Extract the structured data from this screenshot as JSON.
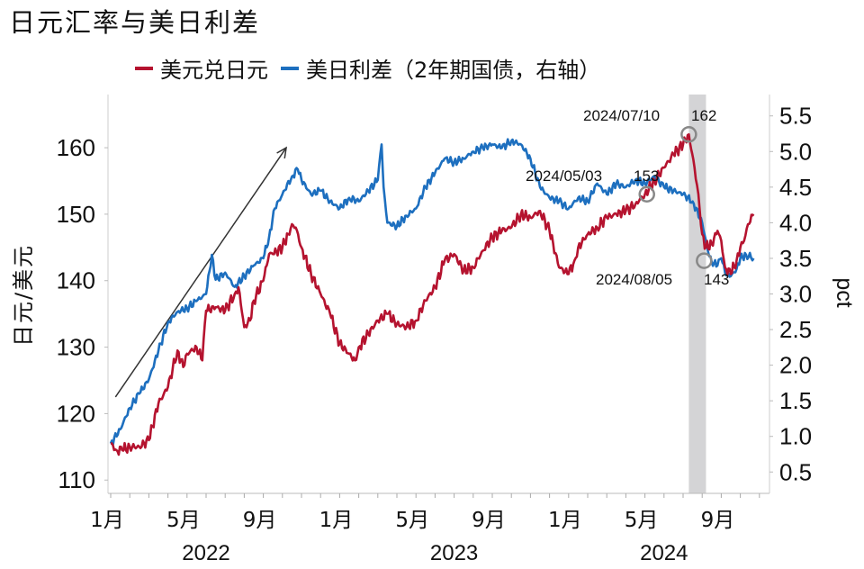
{
  "chart_data": {
    "type": "line",
    "title": "日元汇率与美日利差",
    "ylabel": "日元/美元",
    "y2label": "pct",
    "legend_position": "top",
    "grid": false,
    "ylim": [
      108,
      168
    ],
    "y2lim": [
      0.2,
      5.8
    ],
    "yticks": [
      110,
      120,
      130,
      140,
      150,
      160
    ],
    "y2ticks": [
      "0.5",
      "1.0",
      "1.5",
      "2.0",
      "2.5",
      "3.0",
      "3.5",
      "4.0",
      "4.5",
      "5.0",
      "5.5"
    ],
    "xticks": [
      {
        "m": 0,
        "label": "1月"
      },
      {
        "m": 4,
        "label": "5月"
      },
      {
        "m": 8,
        "label": "9月"
      },
      {
        "m": 12,
        "label": "1月"
      },
      {
        "m": 16,
        "label": "5月"
      },
      {
        "m": 20,
        "label": "9月"
      },
      {
        "m": 24,
        "label": "1月"
      },
      {
        "m": 28,
        "label": "5月"
      },
      {
        "m": 32,
        "label": "9月"
      }
    ],
    "year_labels": [
      {
        "m": 5,
        "label": "2022"
      },
      {
        "m": 18,
        "label": "2023"
      },
      {
        "m": 29,
        "label": "2024"
      }
    ],
    "shaded_period": {
      "from": 30.3,
      "to": 31.2
    },
    "trend_arrow": {
      "from": [
        0.25,
        122.5
      ],
      "to": [
        9.2,
        160
      ]
    },
    "series": [
      {
        "name": "美元兑日元",
        "color": "#b5132f",
        "axis": "left",
        "points": [
          [
            0,
            115.5
          ],
          [
            0.3,
            114.5
          ],
          [
            0.6,
            114.5
          ],
          [
            1,
            115
          ],
          [
            1.5,
            115
          ],
          [
            2,
            116
          ],
          [
            2.5,
            121.5
          ],
          [
            3,
            124
          ],
          [
            3.5,
            129.5
          ],
          [
            3.8,
            127
          ],
          [
            4,
            129
          ],
          [
            4.5,
            130
          ],
          [
            4.8,
            128
          ],
          [
            5,
            135.5
          ],
          [
            5.5,
            136
          ],
          [
            6,
            135.5
          ],
          [
            6.5,
            138
          ],
          [
            6.7,
            139
          ],
          [
            7,
            133
          ],
          [
            7.3,
            134
          ],
          [
            7.5,
            137
          ],
          [
            8,
            140
          ],
          [
            8.3,
            144
          ],
          [
            8.5,
            144
          ],
          [
            9,
            145
          ],
          [
            9.3,
            147
          ],
          [
            9.5,
            148.5
          ],
          [
            9.7,
            148
          ],
          [
            10,
            145
          ],
          [
            10.5,
            141
          ],
          [
            11,
            138
          ],
          [
            11.5,
            135
          ],
          [
            12,
            130.5
          ],
          [
            12.5,
            129
          ],
          [
            12.8,
            128
          ],
          [
            13,
            130
          ],
          [
            13.5,
            132
          ],
          [
            14,
            134
          ],
          [
            14.5,
            135
          ],
          [
            15,
            133.5
          ],
          [
            15.5,
            133
          ],
          [
            16,
            134
          ],
          [
            16.5,
            137
          ],
          [
            17,
            139
          ],
          [
            17.5,
            143
          ],
          [
            18,
            144
          ],
          [
            18.5,
            141.5
          ],
          [
            19,
            142
          ],
          [
            19.5,
            144.5
          ],
          [
            20,
            146.5
          ],
          [
            20.5,
            147.5
          ],
          [
            21,
            148
          ],
          [
            21.5,
            150
          ],
          [
            22,
            149.5
          ],
          [
            22.5,
            150.5
          ],
          [
            23,
            147.5
          ],
          [
            23.5,
            142
          ],
          [
            24,
            141
          ],
          [
            24.3,
            143
          ],
          [
            24.5,
            145
          ],
          [
            25,
            147
          ],
          [
            25.5,
            148
          ],
          [
            26,
            149.5
          ],
          [
            26.5,
            150
          ],
          [
            27,
            150.5
          ],
          [
            27.5,
            151.5
          ],
          [
            28,
            153
          ],
          [
            28.5,
            155
          ],
          [
            29,
            157
          ],
          [
            29.5,
            159
          ],
          [
            30,
            160.5
          ],
          [
            30.3,
            162
          ],
          [
            30.6,
            157
          ],
          [
            30.8,
            153
          ],
          [
            31,
            147
          ],
          [
            31.2,
            145
          ],
          [
            31.5,
            145.5
          ],
          [
            31.8,
            147.5
          ],
          [
            32,
            146
          ],
          [
            32.2,
            142
          ],
          [
            32.5,
            141
          ],
          [
            32.8,
            143
          ],
          [
            33,
            145
          ],
          [
            33.2,
            146
          ],
          [
            33.4,
            148.5
          ],
          [
            33.7,
            150
          ]
        ]
      },
      {
        "name": "美日利差（2年期国债，右轴）",
        "color": "#1d6fbf",
        "axis": "right",
        "points": [
          [
            0,
            0.9
          ],
          [
            0.5,
            1.1
          ],
          [
            1,
            1.4
          ],
          [
            1.5,
            1.6
          ],
          [
            2,
            1.8
          ],
          [
            2.5,
            2.2
          ],
          [
            3,
            2.6
          ],
          [
            3.5,
            2.75
          ],
          [
            4,
            2.8
          ],
          [
            4.5,
            2.9
          ],
          [
            5,
            3.0
          ],
          [
            5.3,
            3.55
          ],
          [
            5.5,
            3.2
          ],
          [
            6,
            3.3
          ],
          [
            6.5,
            3.1
          ],
          [
            7,
            3.25
          ],
          [
            7.5,
            3.4
          ],
          [
            8,
            3.5
          ],
          [
            8.3,
            3.8
          ],
          [
            8.6,
            4.2
          ],
          [
            9,
            4.4
          ],
          [
            9.5,
            4.65
          ],
          [
            9.8,
            4.75
          ],
          [
            10,
            4.6
          ],
          [
            10.5,
            4.4
          ],
          [
            11,
            4.45
          ],
          [
            11.5,
            4.3
          ],
          [
            12,
            4.2
          ],
          [
            12.5,
            4.35
          ],
          [
            13,
            4.3
          ],
          [
            13.5,
            4.45
          ],
          [
            14,
            4.6
          ],
          [
            14.2,
            5.1
          ],
          [
            14.3,
            4.5
          ],
          [
            14.5,
            4.0
          ],
          [
            15,
            3.95
          ],
          [
            15.5,
            4.1
          ],
          [
            16,
            4.2
          ],
          [
            16.5,
            4.5
          ],
          [
            17,
            4.7
          ],
          [
            17.5,
            4.9
          ],
          [
            18,
            4.85
          ],
          [
            18.5,
            4.9
          ],
          [
            19,
            5.0
          ],
          [
            19.5,
            5.05
          ],
          [
            20,
            5.1
          ],
          [
            20.5,
            5.05
          ],
          [
            21,
            5.15
          ],
          [
            21.5,
            5.1
          ],
          [
            22,
            4.9
          ],
          [
            22.5,
            4.5
          ],
          [
            23,
            4.35
          ],
          [
            23.5,
            4.3
          ],
          [
            24,
            4.2
          ],
          [
            24.5,
            4.35
          ],
          [
            25,
            4.3
          ],
          [
            25.5,
            4.55
          ],
          [
            26,
            4.4
          ],
          [
            26.5,
            4.55
          ],
          [
            27,
            4.5
          ],
          [
            27.5,
            4.6
          ],
          [
            28,
            4.55
          ],
          [
            28.5,
            4.65
          ],
          [
            29,
            4.5
          ],
          [
            29.5,
            4.45
          ],
          [
            30,
            4.4
          ],
          [
            30.5,
            4.3
          ],
          [
            31,
            4.0
          ],
          [
            31.3,
            3.6
          ],
          [
            31.5,
            3.45
          ],
          [
            31.8,
            3.4
          ],
          [
            32,
            3.5
          ],
          [
            32.2,
            3.3
          ],
          [
            32.5,
            3.25
          ],
          [
            32.8,
            3.35
          ],
          [
            33,
            3.5
          ],
          [
            33.3,
            3.55
          ],
          [
            33.7,
            3.5
          ]
        ]
      }
    ],
    "annotations": [
      {
        "date": "2024/05/03",
        "value": "153",
        "m": 28.1,
        "y": 153
      },
      {
        "date": "2024/07/10",
        "value": "162",
        "m": 30.3,
        "y": 162
      },
      {
        "date": "2024/08/05",
        "value": "143",
        "m": 31.1,
        "y": 143
      }
    ]
  }
}
